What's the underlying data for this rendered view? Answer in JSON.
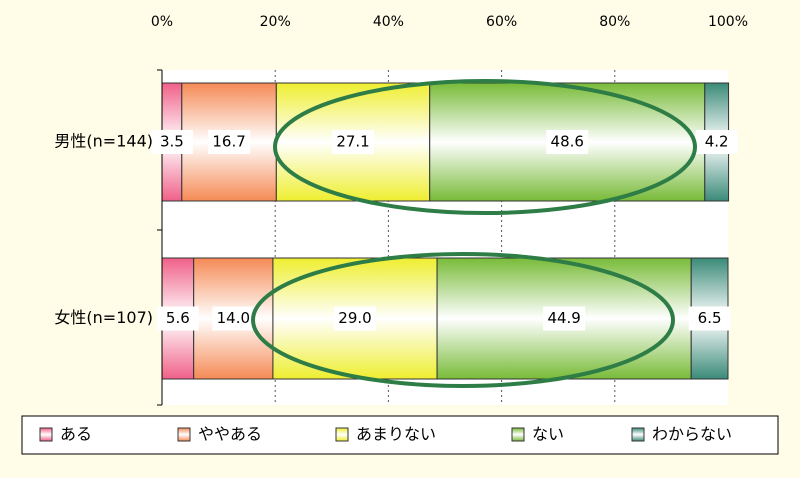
{
  "chart_data": {
    "type": "stacked-barh",
    "categories": [
      "男性(n=144)",
      "女性(n=107)"
    ],
    "series": [
      {
        "name": "ある",
        "color": "#f06088",
        "values": [
          3.5,
          5.6
        ]
      },
      {
        "name": "ややある",
        "color": "#f58a55",
        "values": [
          16.7,
          14.0
        ],
        "value_labels": [
          "16.7",
          "14.0"
        ]
      },
      {
        "name": "あまりない",
        "color": "#eeee30",
        "values": [
          27.1,
          29.0
        ],
        "value_labels": [
          "27.1",
          "29.0"
        ]
      },
      {
        "name": "ない",
        "color": "#78bb38",
        "values": [
          48.6,
          44.9
        ]
      },
      {
        "name": "わからない",
        "color": "#3a8a78",
        "values": [
          4.2,
          6.5
        ]
      }
    ],
    "xlim": [
      0,
      100
    ],
    "xticks": [
      {
        "value": 0,
        "label": "0%"
      },
      {
        "value": 20,
        "label": "20%"
      },
      {
        "value": 40,
        "label": "40%"
      },
      {
        "value": 60,
        "label": "60%"
      },
      {
        "value": 80,
        "label": "80%"
      },
      {
        "value": 100,
        "label": "100%"
      }
    ],
    "grid": true
  }
}
